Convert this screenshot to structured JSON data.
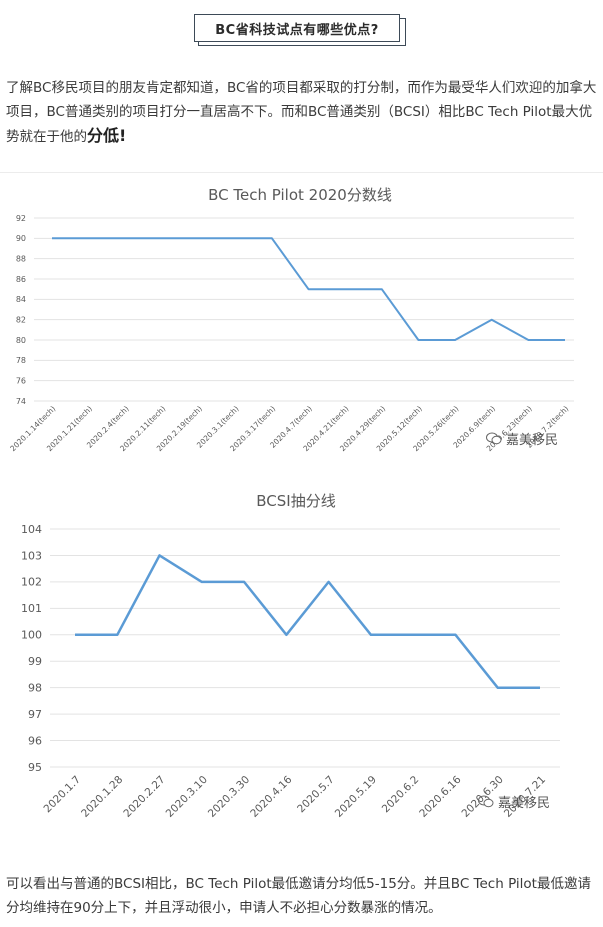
{
  "header": {
    "title": "BC省科技试点有哪些优点?"
  },
  "intro": {
    "text_before": "了解BC移民项目的朋友肯定都知道，BC省的项目都采取的打分制，而作为最受华人们欢迎的加拿大项目，BC普通类别的项目打分一直居高不下。而和BC普通类别（BCSI）相比BC Tech Pilot最大优势就在于他的",
    "emphasis": "分低!"
  },
  "chart_data": [
    {
      "type": "line",
      "title": "BC Tech Pilot 2020分数线",
      "categories": [
        "2020.1.14(tech)",
        "2020.1.21(tech)",
        "2020.2.4(tech)",
        "2020.2.11(tech)",
        "2020.2.19(tech)",
        "2020.3.1(tech)",
        "2020.3.17(tech)",
        "2020.4.7(tech)",
        "2020.4.21(tech)",
        "2020.4.29(tech)",
        "2020.5.12(tech)",
        "2020.5.26(tech)",
        "2020.6.9(tech)",
        "2020.6.23(tech)",
        "2020.7.2(tech)"
      ],
      "values": [
        90,
        90,
        90,
        90,
        90,
        90,
        90,
        85,
        85,
        85,
        80,
        80,
        82,
        80,
        80
      ],
      "ylim": [
        74,
        92
      ],
      "yticks": [
        74,
        76,
        78,
        80,
        82,
        84,
        86,
        88,
        90,
        92
      ],
      "grid": true,
      "color": "#5b9bd5"
    },
    {
      "type": "line",
      "title": "BCSI抽分线",
      "categories": [
        "2020.1.7",
        "2020.1.28",
        "2020.2.27",
        "2020.3.10",
        "2020.3.30",
        "2020.4.16",
        "2020.5.7",
        "2020.5.19",
        "2020.6.2",
        "2020.6.16",
        "2020.6.30",
        "2020.7.21"
      ],
      "values": [
        100,
        100,
        103,
        102,
        102,
        100,
        102,
        100,
        100,
        100,
        98,
        98
      ],
      "ylim": [
        95,
        104
      ],
      "yticks": [
        95,
        96,
        97,
        98,
        99,
        100,
        101,
        102,
        103,
        104
      ],
      "grid": true,
      "color": "#5b9bd5"
    }
  ],
  "watermark": {
    "text": "嘉美移民",
    "icon": "wechat-icon"
  },
  "conclusion": {
    "text": "可以看出与普通的BCSI相比，BC Tech Pilot最低邀请分均低5-15分。并且BC Tech Pilot最低邀请分均维持在90分上下，并且浮动很小，申请人不必担心分数暴涨的情况。"
  }
}
